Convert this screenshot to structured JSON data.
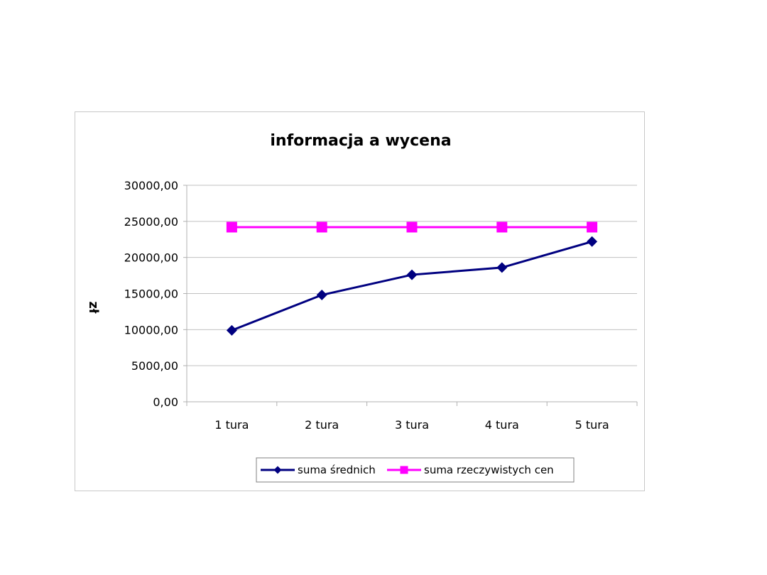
{
  "chart_data": {
    "type": "line",
    "title": "informacja a wycena",
    "xlabel": "",
    "ylabel": "zł",
    "categories": [
      "1 tura",
      "2 tura",
      "3 tura",
      "4 tura",
      "5 tura"
    ],
    "ylim": [
      0,
      30000
    ],
    "yticks": [
      0,
      5000,
      10000,
      15000,
      20000,
      25000,
      30000
    ],
    "ytick_labels": [
      "0,00",
      "5000,00",
      "10000,00",
      "15000,00",
      "20000,00",
      "25000,00",
      "30000,00"
    ],
    "grid": true,
    "legend_position": "bottom",
    "series": [
      {
        "name": "suma średnich",
        "values": [
          9900,
          14800,
          17600,
          18600,
          22200
        ],
        "color": "#000080",
        "marker": "diamond"
      },
      {
        "name": "suma rzeczywistych cen",
        "values": [
          24200,
          24200,
          24200,
          24200,
          24200
        ],
        "color": "#ff00ff",
        "marker": "square"
      }
    ]
  }
}
